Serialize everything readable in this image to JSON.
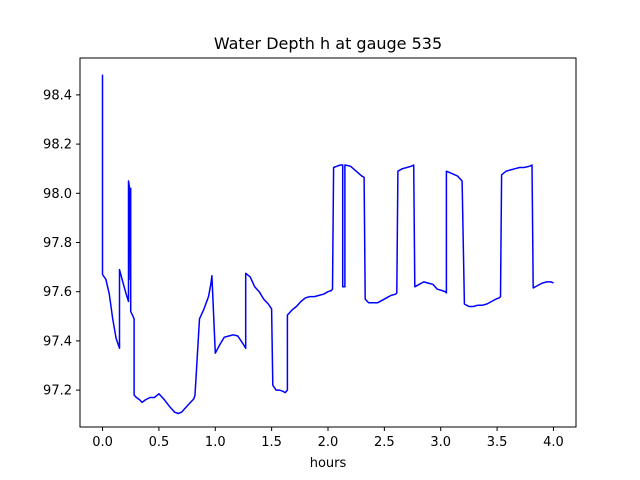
{
  "chart_data": {
    "type": "line",
    "title": "Water Depth h at gauge 535",
    "xlabel": "hours",
    "ylabel": "",
    "xlim": [
      -0.2,
      4.2
    ],
    "ylim": [
      97.05,
      98.55
    ],
    "xticks": [
      0.0,
      0.5,
      1.0,
      1.5,
      2.0,
      2.5,
      3.0,
      3.5,
      4.0
    ],
    "xtick_labels": [
      "0.0",
      "0.5",
      "1.0",
      "1.5",
      "2.0",
      "2.5",
      "3.0",
      "3.5",
      "4.0"
    ],
    "yticks": [
      97.2,
      97.4,
      97.6,
      97.8,
      98.0,
      98.2,
      98.4
    ],
    "ytick_labels": [
      "97.2",
      "97.4",
      "97.6",
      "97.8",
      "98.0",
      "98.2",
      "98.4"
    ],
    "grid": false,
    "series": [
      {
        "color": "#0000ff",
        "x": [
          0.0,
          0.0,
          0.0,
          0.03,
          0.06,
          0.09,
          0.12,
          0.15,
          0.15,
          0.18,
          0.21,
          0.23,
          0.23,
          0.24,
          0.245,
          0.25,
          0.25,
          0.27,
          0.28,
          0.28,
          0.3,
          0.33,
          0.35,
          0.38,
          0.42,
          0.46,
          0.5,
          0.55,
          0.6,
          0.64,
          0.67,
          0.7,
          0.74,
          0.78,
          0.81,
          0.82,
          0.86,
          0.9,
          0.94,
          0.96,
          0.97,
          1.0,
          1.04,
          1.08,
          1.12,
          1.16,
          1.2,
          1.25,
          1.27,
          1.27,
          1.31,
          1.35,
          1.39,
          1.43,
          1.47,
          1.5,
          1.51,
          1.54,
          1.57,
          1.6,
          1.62,
          1.64,
          1.64,
          1.68,
          1.72,
          1.76,
          1.8,
          1.84,
          1.88,
          1.92,
          1.96,
          2.0,
          2.03,
          2.04,
          2.05,
          2.08,
          2.11,
          2.13,
          2.13,
          2.14,
          2.15,
          2.15,
          2.2,
          2.25,
          2.3,
          2.32,
          2.33,
          2.36,
          2.4,
          2.44,
          2.48,
          2.52,
          2.56,
          2.6,
          2.61,
          2.62,
          2.66,
          2.7,
          2.74,
          2.76,
          2.77,
          2.81,
          2.85,
          2.89,
          2.93,
          2.97,
          3.01,
          3.04,
          3.05,
          3.05,
          3.1,
          3.15,
          3.18,
          3.19,
          3.21,
          3.25,
          3.29,
          3.33,
          3.37,
          3.41,
          3.45,
          3.49,
          3.52,
          3.53,
          3.54,
          3.58,
          3.62,
          3.66,
          3.7,
          3.74,
          3.79,
          3.81,
          3.82,
          3.86,
          3.9,
          3.94,
          3.98,
          4.0
        ],
        "y": [
          97.98,
          98.48,
          97.67,
          97.65,
          97.59,
          97.49,
          97.41,
          97.37,
          97.69,
          97.64,
          97.59,
          97.56,
          98.05,
          98.02,
          97.65,
          98.02,
          97.52,
          97.5,
          97.49,
          97.18,
          97.17,
          97.16,
          97.15,
          97.16,
          97.17,
          97.17,
          97.185,
          97.16,
          97.13,
          97.11,
          97.105,
          97.11,
          97.13,
          97.15,
          97.165,
          97.18,
          97.49,
          97.53,
          97.58,
          97.63,
          97.665,
          97.35,
          97.385,
          97.415,
          97.42,
          97.425,
          97.42,
          97.385,
          97.37,
          97.675,
          97.66,
          97.62,
          97.6,
          97.57,
          97.55,
          97.53,
          97.22,
          97.2,
          97.2,
          97.195,
          97.19,
          97.2,
          97.505,
          97.525,
          97.54,
          97.56,
          97.575,
          97.58,
          97.58,
          97.585,
          97.59,
          97.6,
          97.605,
          97.61,
          98.105,
          98.11,
          98.115,
          98.115,
          97.62,
          97.62,
          97.62,
          98.115,
          98.11,
          98.09,
          98.07,
          98.065,
          97.57,
          97.555,
          97.555,
          97.555,
          97.565,
          97.575,
          97.585,
          97.59,
          97.595,
          98.09,
          98.1,
          98.105,
          98.11,
          98.115,
          97.62,
          97.63,
          97.64,
          97.635,
          97.63,
          97.61,
          97.605,
          97.6,
          97.595,
          98.09,
          98.08,
          98.07,
          98.055,
          98.05,
          97.55,
          97.54,
          97.54,
          97.545,
          97.545,
          97.55,
          97.56,
          97.57,
          97.575,
          97.58,
          98.075,
          98.09,
          98.095,
          98.1,
          98.105,
          98.105,
          98.11,
          98.115,
          97.615,
          97.625,
          97.635,
          97.64,
          97.64,
          97.635
        ]
      }
    ]
  }
}
